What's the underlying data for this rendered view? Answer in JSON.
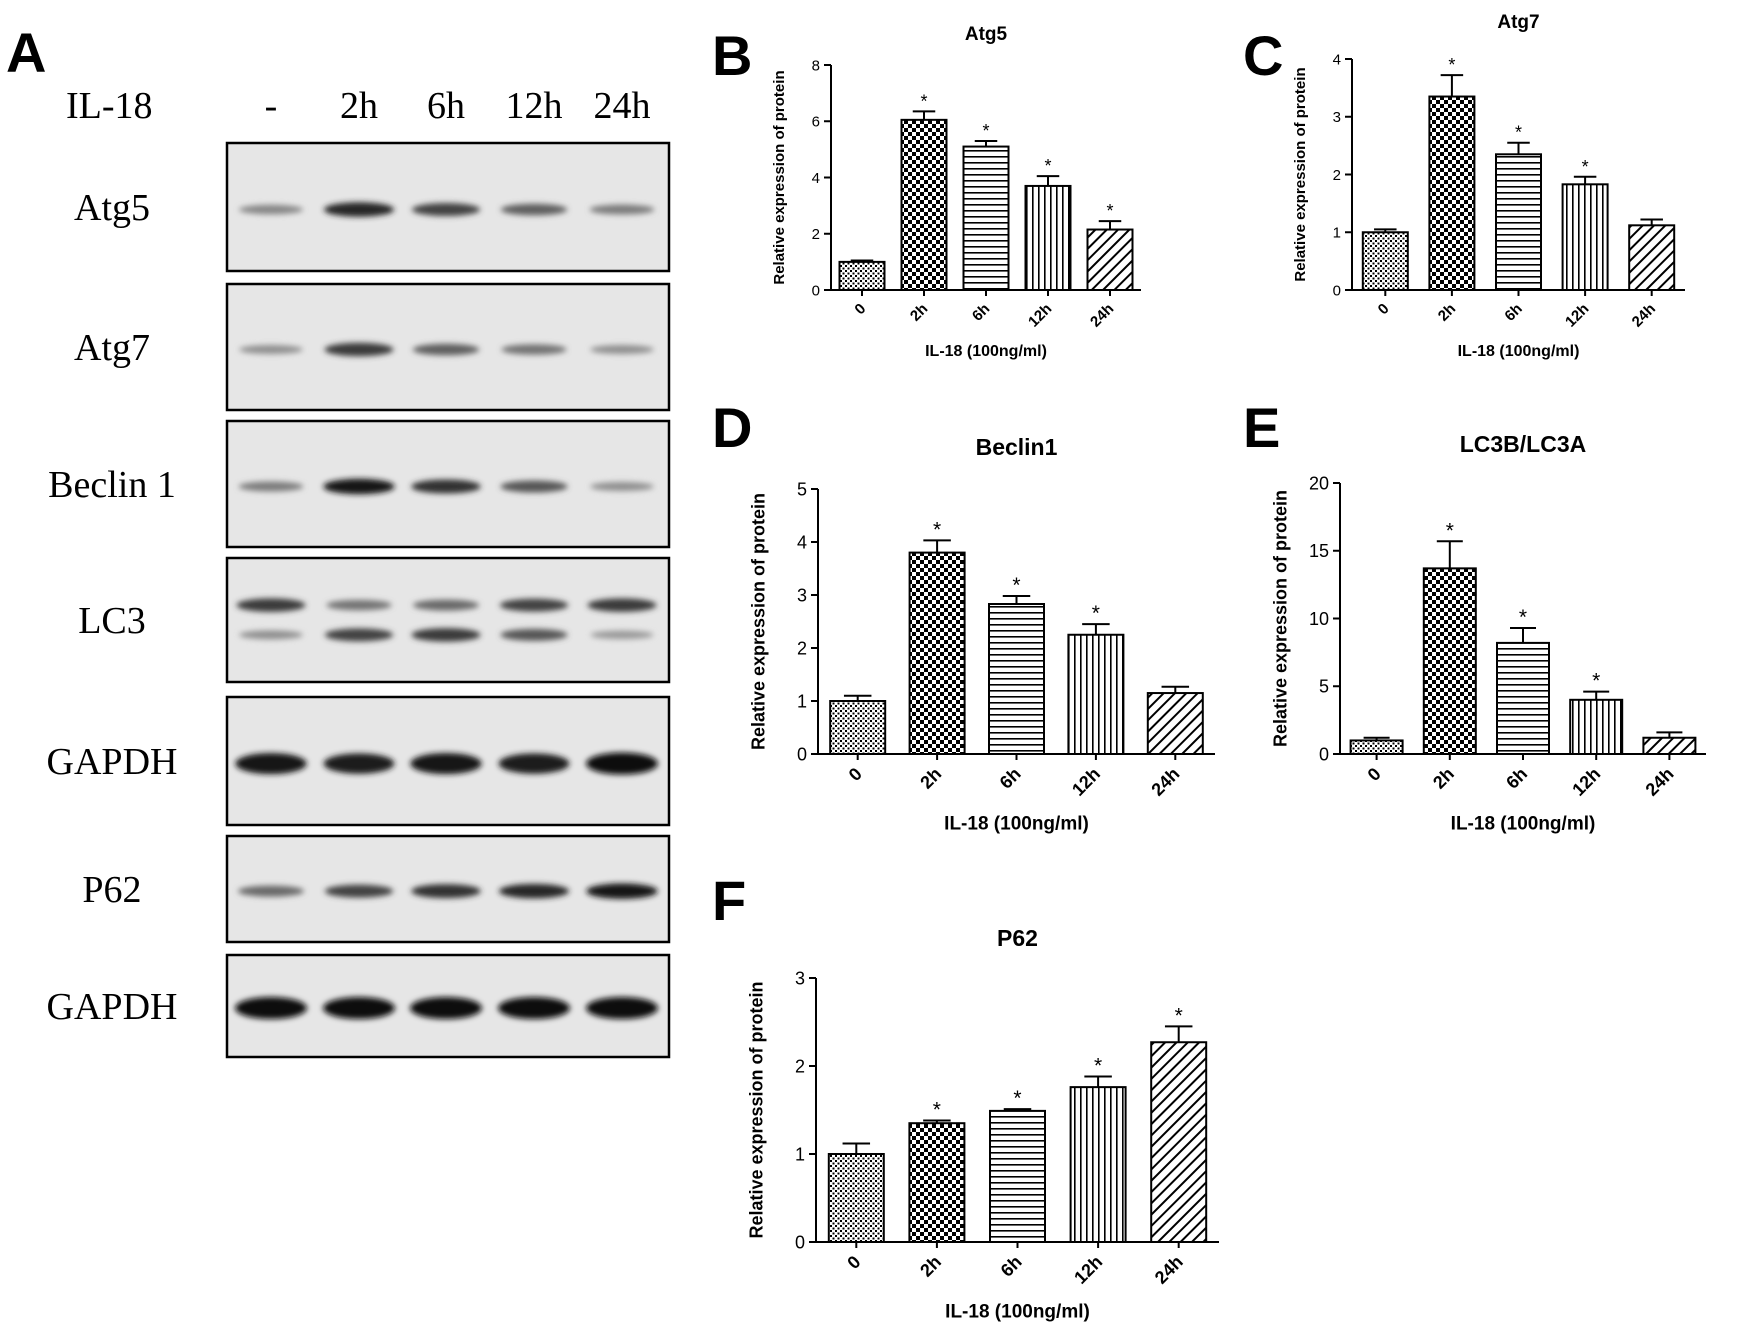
{
  "panel_letters": [
    "A",
    "B",
    "C",
    "D",
    "E",
    "F"
  ],
  "western_blot": {
    "treatment_label": "IL-18",
    "timepoints": [
      "-",
      "2h",
      "6h",
      "12h",
      "24h"
    ],
    "rows": [
      {
        "label": "Atg5",
        "band_intensity": [
          0.35,
          0.85,
          0.7,
          0.55,
          0.4
        ]
      },
      {
        "label": "Atg7",
        "band_intensity": [
          0.3,
          0.75,
          0.55,
          0.45,
          0.3
        ]
      },
      {
        "label": "Beclin 1",
        "band_intensity": [
          0.4,
          0.95,
          0.8,
          0.6,
          0.3
        ]
      },
      {
        "label": "LC3",
        "band_intensity": [
          0.75,
          0.45,
          0.5,
          0.7,
          0.75
        ]
      },
      {
        "label": "GAPDH",
        "band_intensity": [
          0.95,
          0.9,
          0.95,
          0.9,
          1.0
        ]
      },
      {
        "label": "P62",
        "band_intensity": [
          0.5,
          0.7,
          0.8,
          0.85,
          0.95
        ]
      },
      {
        "label": "GAPDH",
        "band_intensity": [
          1.0,
          1.0,
          1.0,
          1.0,
          1.0
        ]
      }
    ],
    "lc3_lower_band_intensity": [
      0.3,
      0.7,
      0.75,
      0.6,
      0.25
    ]
  },
  "chart_data": [
    {
      "panel": "B",
      "type": "bar",
      "title": "Atg5",
      "xlabel": "IL-18 (100ng/ml)",
      "ylabel": "Relative expression of protein",
      "categories": [
        "0",
        "2h",
        "6h",
        "12h",
        "24h"
      ],
      "values": [
        1.0,
        6.05,
        5.1,
        3.7,
        2.15
      ],
      "errors": [
        0.05,
        0.3,
        0.2,
        0.35,
        0.3
      ],
      "significant": [
        false,
        true,
        true,
        true,
        true
      ],
      "ylim": [
        0,
        8
      ],
      "yticks": [
        0,
        2,
        4,
        6,
        8
      ]
    },
    {
      "panel": "C",
      "type": "bar",
      "title": "Atg7",
      "xlabel": "IL-18 (100ng/ml)",
      "ylabel": "Relative expression of protein",
      "categories": [
        "0",
        "2h",
        "6h",
        "12h",
        "24h"
      ],
      "values": [
        1.0,
        3.35,
        2.35,
        1.83,
        1.12
      ],
      "errors": [
        0.05,
        0.37,
        0.2,
        0.13,
        0.1
      ],
      "significant": [
        false,
        true,
        true,
        true,
        false
      ],
      "ylim": [
        0,
        4
      ],
      "yticks": [
        0,
        1,
        2,
        3,
        4
      ]
    },
    {
      "panel": "D",
      "type": "bar",
      "title": "Beclin1",
      "xlabel": "IL-18 (100ng/ml)",
      "ylabel": "Relative expression of protein",
      "categories": [
        "0",
        "2h",
        "6h",
        "12h",
        "24h"
      ],
      "values": [
        1.0,
        3.8,
        2.83,
        2.25,
        1.15
      ],
      "errors": [
        0.1,
        0.23,
        0.15,
        0.2,
        0.12
      ],
      "significant": [
        false,
        true,
        true,
        true,
        false
      ],
      "ylim": [
        0,
        5
      ],
      "yticks": [
        0,
        1,
        2,
        3,
        4,
        5
      ]
    },
    {
      "panel": "E",
      "type": "bar",
      "title": "LC3B/LC3A",
      "xlabel": "IL-18 (100ng/ml)",
      "ylabel": "Relative expression of protein",
      "categories": [
        "0",
        "2h",
        "6h",
        "12h",
        "24h"
      ],
      "values": [
        1.0,
        13.7,
        8.2,
        4.0,
        1.2
      ],
      "errors": [
        0.2,
        2.0,
        1.1,
        0.6,
        0.4
      ],
      "significant": [
        false,
        true,
        true,
        true,
        false
      ],
      "ylim": [
        0,
        20
      ],
      "yticks": [
        0,
        5,
        10,
        15,
        20
      ]
    },
    {
      "panel": "F",
      "type": "bar",
      "title": "P62",
      "xlabel": "IL-18 (100ng/ml)",
      "ylabel": "Relative expression of protein",
      "categories": [
        "0",
        "2h",
        "6h",
        "12h",
        "24h"
      ],
      "values": [
        1.0,
        1.35,
        1.49,
        1.76,
        2.27
      ],
      "errors": [
        0.12,
        0.03,
        0.02,
        0.12,
        0.18
      ],
      "significant": [
        false,
        true,
        true,
        true,
        true
      ],
      "ylim": [
        0,
        3
      ],
      "yticks": [
        0,
        1,
        2,
        3
      ]
    }
  ],
  "significance_marker": "*",
  "bar_patterns": [
    "dots",
    "checker",
    "hlines",
    "vlines",
    "diag"
  ]
}
